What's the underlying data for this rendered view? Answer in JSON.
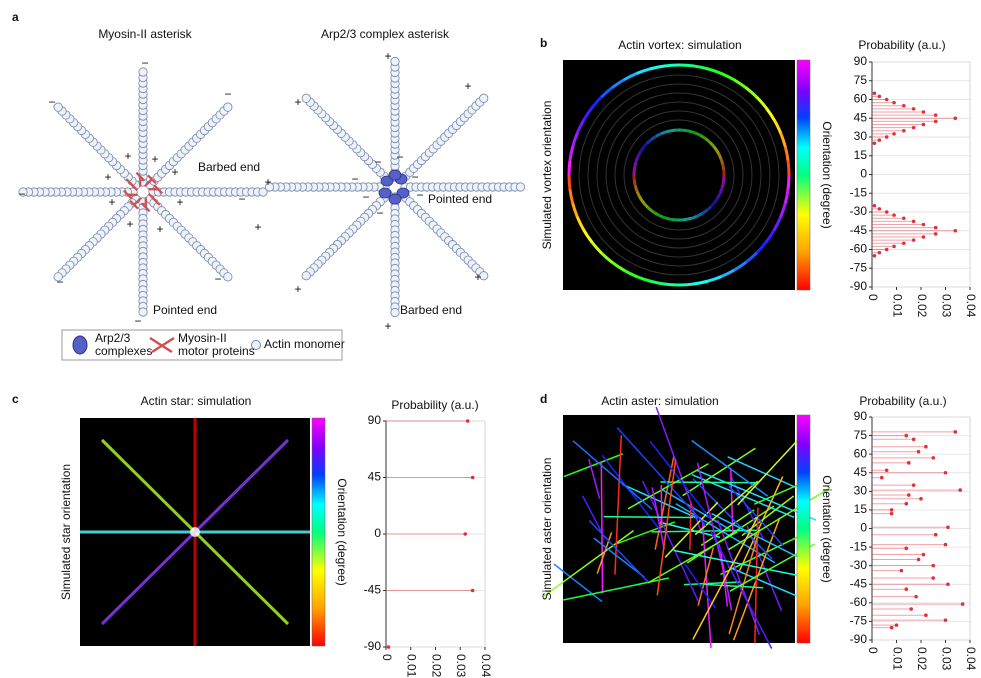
{
  "panel_labels": [
    "a",
    "b",
    "c",
    "d"
  ],
  "diagram": {
    "titles": [
      "Myosin-II asterisk",
      "Arp2/3 complex asterisk"
    ],
    "annotations": [
      "Barbed end",
      "Pointed end",
      "Pointed end",
      "Barbed end"
    ],
    "signs_left": [
      "−",
      "−",
      "−",
      "−",
      "−",
      "−",
      "−",
      "−",
      "+",
      "+",
      "+",
      "+",
      "+",
      "+",
      "+",
      "+"
    ],
    "signs_right": [
      "+",
      "+",
      "+",
      "+",
      "+",
      "+",
      "+",
      "+",
      "−",
      "−",
      "−",
      "−",
      "−",
      "−",
      "−"
    ],
    "legend": [
      [
        "Arp2/3",
        "complexes"
      ],
      [
        "Myosin-II",
        "motor proteins"
      ],
      [
        "Actin monomer"
      ]
    ]
  },
  "chart_data": [
    {
      "type": "stem",
      "title": "Actin vortex: simulation",
      "xlabel": "Probability (a.u.)",
      "ylabel": "Simulated vortex orientation",
      "colorbar_label": "Orientation (degree)",
      "color": "#e0303a",
      "y": [
        25,
        27.5,
        30,
        32.5,
        35,
        37.5,
        40,
        42.5,
        45,
        47.5,
        50,
        52.5,
        55,
        57.5,
        60,
        62.5,
        65,
        -25,
        -27.5,
        -30,
        -32.5,
        -35,
        -37.5,
        -40,
        -42.5,
        -45,
        -47.5,
        -50,
        -52.5,
        -55,
        -57.5,
        -60,
        -62.5,
        -65
      ],
      "values": [
        0.001,
        0.003,
        0.006,
        0.009,
        0.013,
        0.017,
        0.021,
        0.026,
        0.034,
        0.026,
        0.021,
        0.017,
        0.013,
        0.009,
        0.006,
        0.003,
        0.001,
        0.001,
        0.003,
        0.006,
        0.009,
        0.013,
        0.017,
        0.021,
        0.026,
        0.034,
        0.026,
        0.021,
        0.017,
        0.013,
        0.009,
        0.006,
        0.003,
        0.001
      ],
      "xlim": [
        0,
        0.04
      ],
      "xticks": [
        0,
        0.01,
        0.02,
        0.03,
        0.04
      ],
      "ylim": [
        -90,
        90
      ],
      "yticks": [
        -90,
        -75,
        -60,
        -45,
        -30,
        -15,
        0,
        15,
        30,
        45,
        60,
        75,
        90
      ],
      "grid": true
    },
    {
      "type": "stem",
      "title": "Actin star: simulation",
      "xlabel": "Probability (a.u.)",
      "ylabel": "Simulated star orientation",
      "colorbar_label": "Orientation (degree)",
      "color": "#e0303a",
      "y": [
        -90,
        -45,
        0,
        45,
        90
      ],
      "values": [
        0.001,
        0.035,
        0.032,
        0.035,
        0.033
      ],
      "xlim": [
        0,
        0.04
      ],
      "xticks": [
        0,
        0.01,
        0.02,
        0.03,
        0.04
      ],
      "ylim": [
        -90,
        90
      ],
      "yticks": [
        -90,
        -45,
        0,
        45,
        90
      ],
      "grid": true
    },
    {
      "type": "stem",
      "title": "Actin aster: simulation",
      "xlabel": "Probability (a.u.)",
      "ylabel": "Simulated aster orientation",
      "colorbar_label": "Orientation (degree)",
      "color": "#e0303a",
      "y": [
        78,
        75,
        72,
        66,
        62,
        57,
        53,
        47,
        45,
        41,
        35,
        31,
        27,
        24,
        20,
        15,
        12,
        1,
        -5,
        -13,
        -16,
        -21,
        -25,
        -30,
        -34,
        -40,
        -45,
        -49,
        -55,
        -61,
        -65,
        -70,
        -74,
        -78,
        -80
      ],
      "values": [
        0.034,
        0.014,
        0.017,
        0.022,
        0.019,
        0.025,
        0.015,
        0.006,
        0.03,
        0.004,
        0.017,
        0.036,
        0.015,
        0.02,
        0.014,
        0.008,
        0.008,
        0.031,
        0.026,
        0.03,
        0.014,
        0.021,
        0.019,
        0.025,
        0.012,
        0.025,
        0.031,
        0.014,
        0.018,
        0.037,
        0.016,
        0.022,
        0.03,
        0.01,
        0.008
      ],
      "xlim": [
        0,
        0.04
      ],
      "xticks": [
        0,
        0.01,
        0.02,
        0.03,
        0.04
      ],
      "ylim": [
        -90,
        90
      ],
      "yticks": [
        -90,
        -75,
        -60,
        -45,
        -30,
        -15,
        0,
        15,
        30,
        45,
        60,
        75,
        90
      ],
      "grid": true
    }
  ]
}
